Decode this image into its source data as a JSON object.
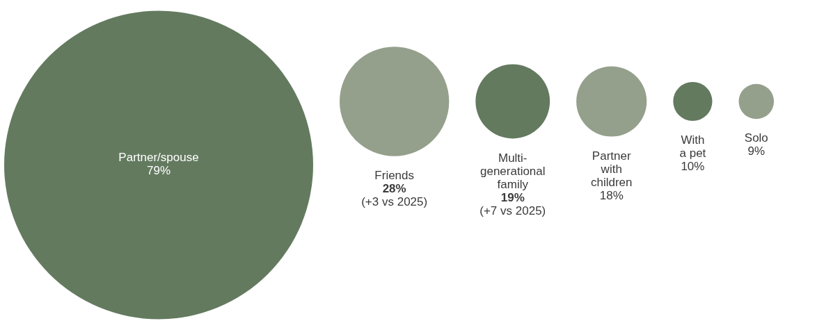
{
  "chart_data": {
    "type": "other",
    "categories": [
      "Partner/spouse",
      "Friends",
      "Multi-generational family",
      "Partner with children",
      "With a pet",
      "Solo"
    ],
    "values": [
      79,
      28,
      19,
      18,
      10,
      9
    ],
    "colors": [
      "#637a5f",
      "#95a08c",
      "#637a5f",
      "#95a08c",
      "#637a5f",
      "#95a08c"
    ],
    "value_labels": [
      "79%",
      "28%",
      "19%",
      "18%",
      "10%",
      "9%"
    ],
    "annotations": [
      {
        "text": "(+3 vs 2025)",
        "x": "Friends"
      },
      {
        "text": "(+7 vs 2025)",
        "x": "Multi-generational family"
      }
    ]
  }
}
